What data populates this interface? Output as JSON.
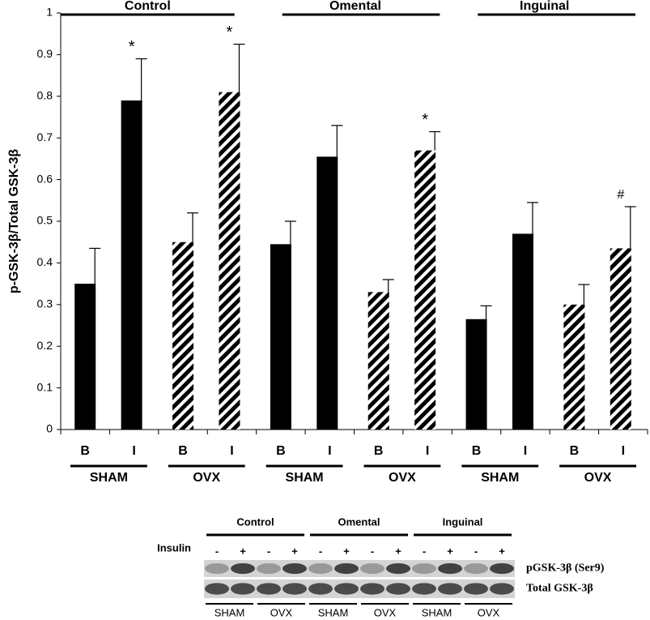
{
  "chart_data": {
    "type": "bar",
    "y_label": "p-GSK-3β/Total GSK-3β",
    "categories": [
      "B",
      "I",
      "B",
      "I",
      "B",
      "I",
      "B",
      "I",
      "B",
      "I",
      "B",
      "I"
    ],
    "treatments": [
      "SHAM",
      "OVX",
      "SHAM",
      "OVX",
      "SHAM",
      "OVX"
    ],
    "tissues": [
      "Control",
      "Omental",
      "Inguinal"
    ],
    "values": [
      0.35,
      0.79,
      0.45,
      0.81,
      0.445,
      0.655,
      0.33,
      0.67,
      0.265,
      0.47,
      0.3,
      0.435
    ],
    "errors": [
      0.085,
      0.1,
      0.07,
      0.115,
      0.055,
      0.075,
      0.03,
      0.045,
      0.032,
      0.075,
      0.048,
      0.1
    ],
    "hatched": [
      false,
      false,
      true,
      true,
      false,
      false,
      true,
      true,
      false,
      false,
      true,
      true
    ],
    "annotations": [
      null,
      "*",
      null,
      "*",
      null,
      null,
      null,
      "*",
      null,
      null,
      null,
      "#"
    ],
    "color": "#000000",
    "ylim": [
      0,
      1
    ],
    "yticks": [
      0,
      0.1,
      0.2,
      0.3,
      0.4,
      0.5,
      0.6,
      0.7,
      0.8,
      0.9,
      1
    ]
  },
  "blot": {
    "tissues": [
      "Control",
      "Omental",
      "Inguinal"
    ],
    "insulin_label": "Insulin",
    "insulin": [
      "-",
      "+",
      "-",
      "+",
      "-",
      "+",
      "-",
      "+",
      "-",
      "+",
      "-",
      "+"
    ],
    "rows": [
      "pGSK-3β (Ser9)",
      "Total GSK-3β"
    ],
    "treatments": [
      "SHAM",
      "OVX",
      "SHAM",
      "OVX",
      "SHAM",
      "OVX"
    ]
  }
}
